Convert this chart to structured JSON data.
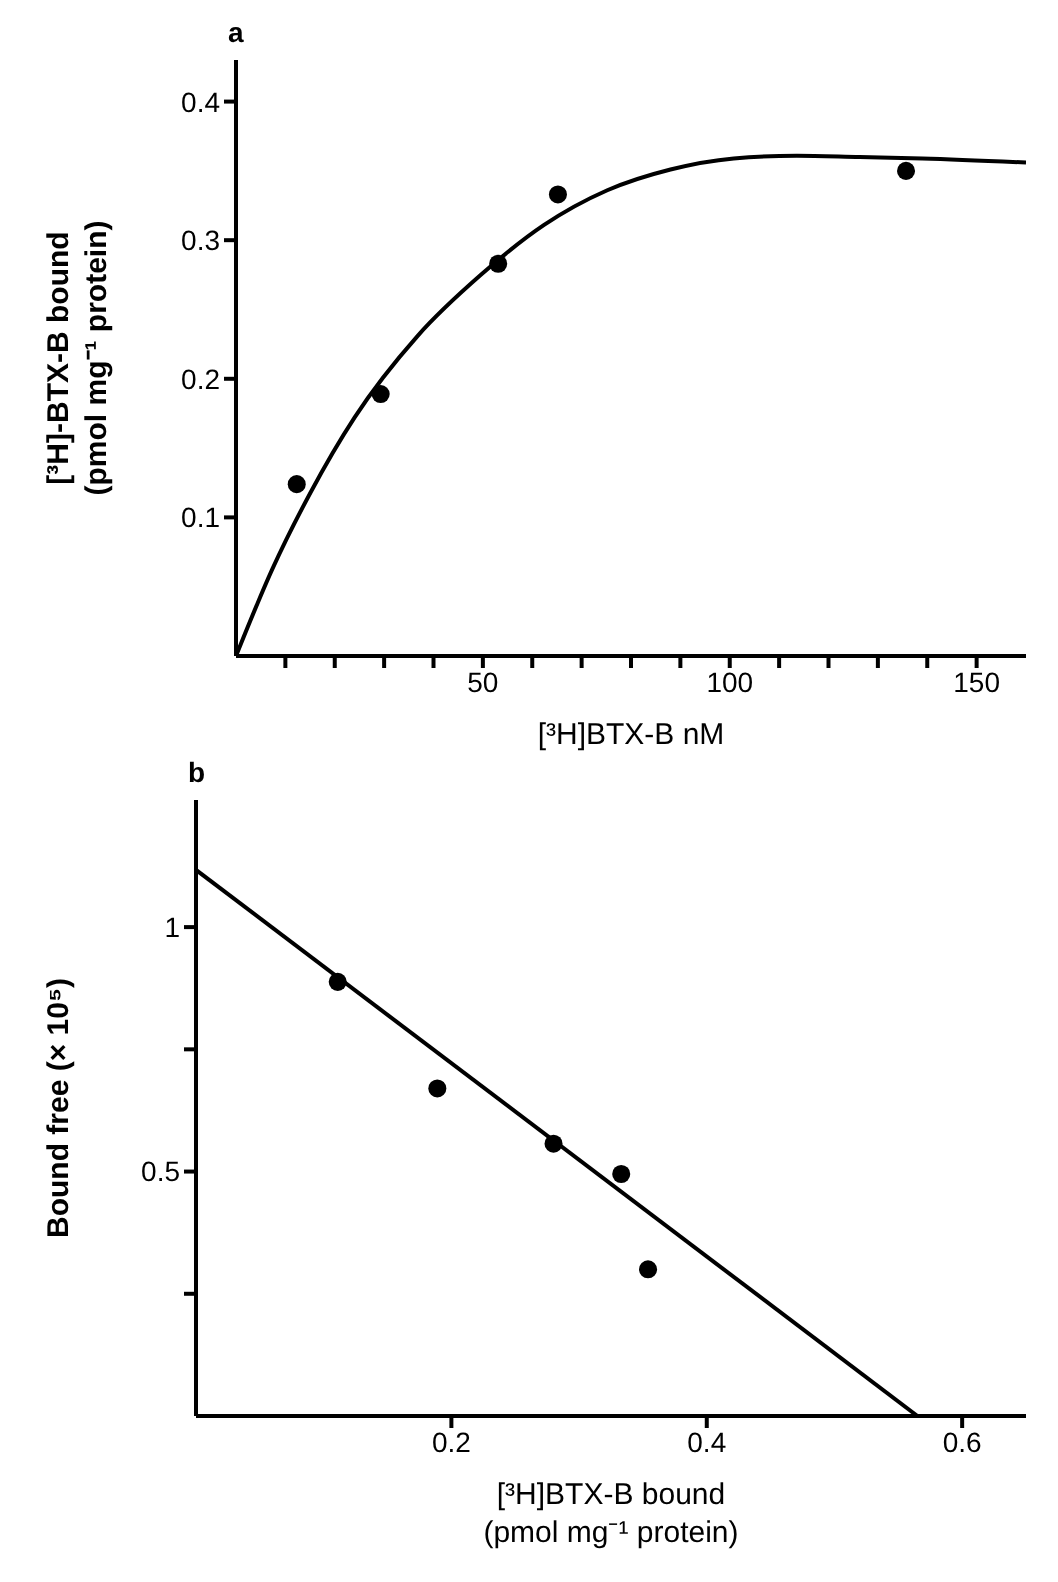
{
  "chart_data": [
    {
      "type": "scatter",
      "title": "a",
      "xlabel": "[³H]BTX-B nM",
      "ylabel": "[³H]-BTX-B bound\n(pmol mg⁻¹ protein)",
      "xlim": [
        0,
        160
      ],
      "ylim": [
        0,
        0.43
      ],
      "xticks": [
        {
          "value": 10,
          "label": null
        },
        {
          "value": 20,
          "label": null
        },
        {
          "value": 30,
          "label": null
        },
        {
          "value": 40,
          "label": null
        },
        50,
        {
          "value": 60,
          "label": null
        },
        {
          "value": 70,
          "label": null
        },
        {
          "value": 80,
          "label": null
        },
        {
          "value": 90,
          "label": null
        },
        100,
        {
          "value": 110,
          "label": null
        },
        {
          "value": 120,
          "label": null
        },
        {
          "value": 130,
          "label": null
        },
        {
          "value": 140,
          "label": null
        },
        150
      ],
      "yticks": [
        0.1,
        0.2,
        0.3,
        0.4
      ],
      "grid": false,
      "series": [
        {
          "color": "#000000",
          "marker": "circle",
          "x": [
            12.3,
            29.3,
            53.1,
            65.2,
            135.7
          ],
          "values": [
            0.124,
            0.189,
            0.283,
            0.333,
            0.35
          ]
        },
        {
          "type": "line",
          "color": "#000000",
          "marker": "none",
          "line_style": "solid",
          "x": [
            0,
            7.4,
            15.1,
            24,
            36.8,
            49.6,
            62.4,
            75.2,
            88,
            100.8,
            113.6,
            126.3,
            139,
            160
          ],
          "values": [
            0,
            0.063,
            0.118,
            0.172,
            0.231,
            0.275,
            0.311,
            0.336,
            0.351,
            0.359,
            0.361,
            0.36,
            0.359,
            0.356
          ]
        }
      ]
    },
    {
      "type": "scatter",
      "title": "b",
      "xlabel": "[³H]BTX-B bound\n(pmol mg⁻¹ protein)",
      "ylabel": "Bound free (× 10⁵)",
      "xlim": [
        0,
        0.65
      ],
      "ylim": [
        0,
        1.26
      ],
      "xticks": [
        0.2,
        0.4,
        0.6
      ],
      "yticks": [
        {
          "value": 0.25,
          "label": null
        },
        0.5,
        {
          "value": 0.75,
          "label": null
        },
        1
      ],
      "grid": false,
      "series": [
        {
          "color": "#000000",
          "marker": "circle",
          "x": [
            0.111,
            0.189,
            0.28,
            0.333,
            0.354
          ],
          "values": [
            0.888,
            0.67,
            0.557,
            0.495,
            0.3
          ]
        },
        {
          "type": "line",
          "color": "#000000",
          "marker": "none",
          "line_style": "solid",
          "x": [
            0,
            0.565
          ],
          "values": [
            1.117,
            0
          ]
        }
      ]
    }
  ]
}
